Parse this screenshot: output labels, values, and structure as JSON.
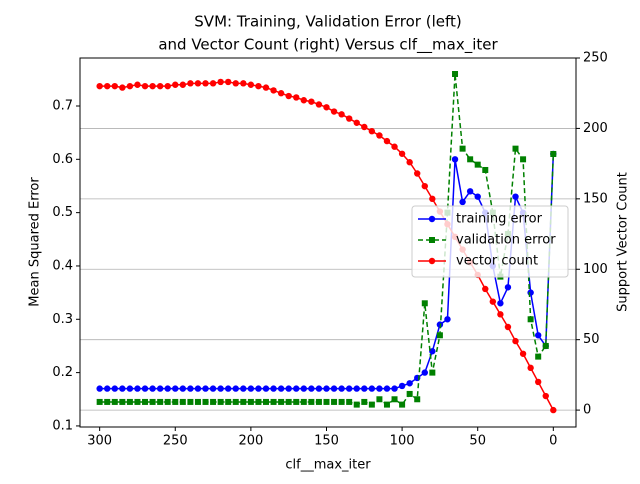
{
  "chart_data": {
    "type": "line",
    "title": [
      "SVM: Training, Validation Error (left)",
      "and Vector Count (right) Versus clf__max_iter"
    ],
    "xlabel": "clf__max_iter",
    "ylabel": "Mean Squared Error",
    "y2label": "Support Vector Count",
    "x": [
      300,
      295,
      290,
      285,
      280,
      275,
      270,
      265,
      260,
      255,
      250,
      245,
      240,
      235,
      230,
      225,
      220,
      215,
      210,
      205,
      200,
      195,
      190,
      185,
      180,
      175,
      170,
      165,
      160,
      155,
      150,
      145,
      140,
      135,
      130,
      125,
      120,
      115,
      110,
      105,
      100,
      95,
      90,
      85,
      80,
      75,
      70,
      65,
      60,
      55,
      50,
      45,
      40,
      35,
      30,
      25,
      20,
      15,
      10,
      5,
      0
    ],
    "series": [
      {
        "name": "training error",
        "color": "#0000ff",
        "marker": "circle",
        "dashed": false,
        "axis": "y",
        "values": [
          0.17,
          0.17,
          0.17,
          0.17,
          0.17,
          0.17,
          0.17,
          0.17,
          0.17,
          0.17,
          0.17,
          0.17,
          0.17,
          0.17,
          0.17,
          0.17,
          0.17,
          0.17,
          0.17,
          0.17,
          0.17,
          0.17,
          0.17,
          0.17,
          0.17,
          0.17,
          0.17,
          0.17,
          0.17,
          0.17,
          0.17,
          0.17,
          0.17,
          0.17,
          0.17,
          0.17,
          0.17,
          0.17,
          0.17,
          0.17,
          0.175,
          0.18,
          0.19,
          0.2,
          0.24,
          0.29,
          0.3,
          0.6,
          0.52,
          0.54,
          0.53,
          0.5,
          0.4,
          0.33,
          0.36,
          0.53,
          0.5,
          0.35,
          0.27,
          0.25,
          0.61
        ]
      },
      {
        "name": "validation error",
        "color": "#008000",
        "marker": "square",
        "dashed": true,
        "axis": "y",
        "values": [
          0.145,
          0.145,
          0.145,
          0.145,
          0.145,
          0.145,
          0.145,
          0.145,
          0.145,
          0.145,
          0.145,
          0.145,
          0.145,
          0.145,
          0.145,
          0.145,
          0.145,
          0.145,
          0.145,
          0.145,
          0.145,
          0.145,
          0.145,
          0.145,
          0.145,
          0.145,
          0.145,
          0.145,
          0.145,
          0.145,
          0.145,
          0.145,
          0.145,
          0.145,
          0.14,
          0.145,
          0.14,
          0.15,
          0.14,
          0.15,
          0.14,
          0.16,
          0.15,
          0.33,
          0.2,
          0.27,
          0.5,
          0.76,
          0.62,
          0.6,
          0.59,
          0.58,
          0.5,
          0.38,
          0.46,
          0.62,
          0.6,
          0.3,
          0.23,
          0.25,
          0.61
        ]
      },
      {
        "name": "vector count",
        "color": "#ff0000",
        "marker": "circle",
        "dashed": false,
        "axis": "y2",
        "values": [
          230,
          230,
          230,
          229,
          230,
          231,
          230,
          230,
          230,
          230,
          231,
          231,
          232,
          232,
          232,
          232,
          233,
          233,
          232,
          232,
          231,
          230,
          229,
          227,
          225,
          223,
          222,
          220,
          219,
          217,
          215,
          212,
          210,
          207,
          204,
          201,
          198,
          195,
          191,
          187,
          182,
          176,
          168,
          159,
          150,
          141,
          132,
          123,
          114,
          105,
          96,
          86,
          77,
          68,
          59,
          49,
          40,
          30,
          20,
          10,
          0
        ]
      }
    ],
    "xlim": [
      313,
      -15
    ],
    "xticks": [
      300,
      250,
      200,
      150,
      100,
      50,
      0
    ],
    "ylim": [
      0.098,
      0.79
    ],
    "yticks": [
      0.1,
      0.2,
      0.3,
      0.4,
      0.5,
      0.6,
      0.7
    ],
    "y2lim": [
      -12,
      250
    ],
    "y2ticks": [
      0,
      50,
      100,
      150,
      200,
      250
    ],
    "grid": "y2",
    "legend": "center right"
  }
}
